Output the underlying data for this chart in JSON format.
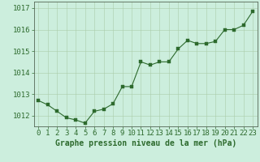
{
  "x": [
    0,
    1,
    2,
    3,
    4,
    5,
    6,
    7,
    8,
    9,
    10,
    11,
    12,
    13,
    14,
    15,
    16,
    17,
    18,
    19,
    20,
    21,
    22,
    23
  ],
  "y": [
    1012.7,
    1012.5,
    1012.2,
    1011.9,
    1011.8,
    1011.65,
    1012.2,
    1012.3,
    1012.55,
    1013.35,
    1013.35,
    1014.5,
    1014.35,
    1014.5,
    1014.5,
    1015.1,
    1015.5,
    1015.35,
    1015.35,
    1015.45,
    1016.0,
    1016.0,
    1016.2,
    1016.85
  ],
  "ylim_min": 1011.5,
  "ylim_max": 1017.3,
  "yticks": [
    1012,
    1013,
    1014,
    1015,
    1016,
    1017
  ],
  "xlabel": "Graphe pression niveau de la mer (hPa)",
  "line_color": "#2d6a2d",
  "marker_color": "#2d6a2d",
  "bg_color": "#cceedd",
  "grid_color": "#aaccaa",
  "axis_color": "#556655",
  "tick_label_color": "#2d6a2d",
  "xlabel_color": "#2d6a2d",
  "xlabel_fontsize": 7,
  "tick_fontsize": 6.5
}
